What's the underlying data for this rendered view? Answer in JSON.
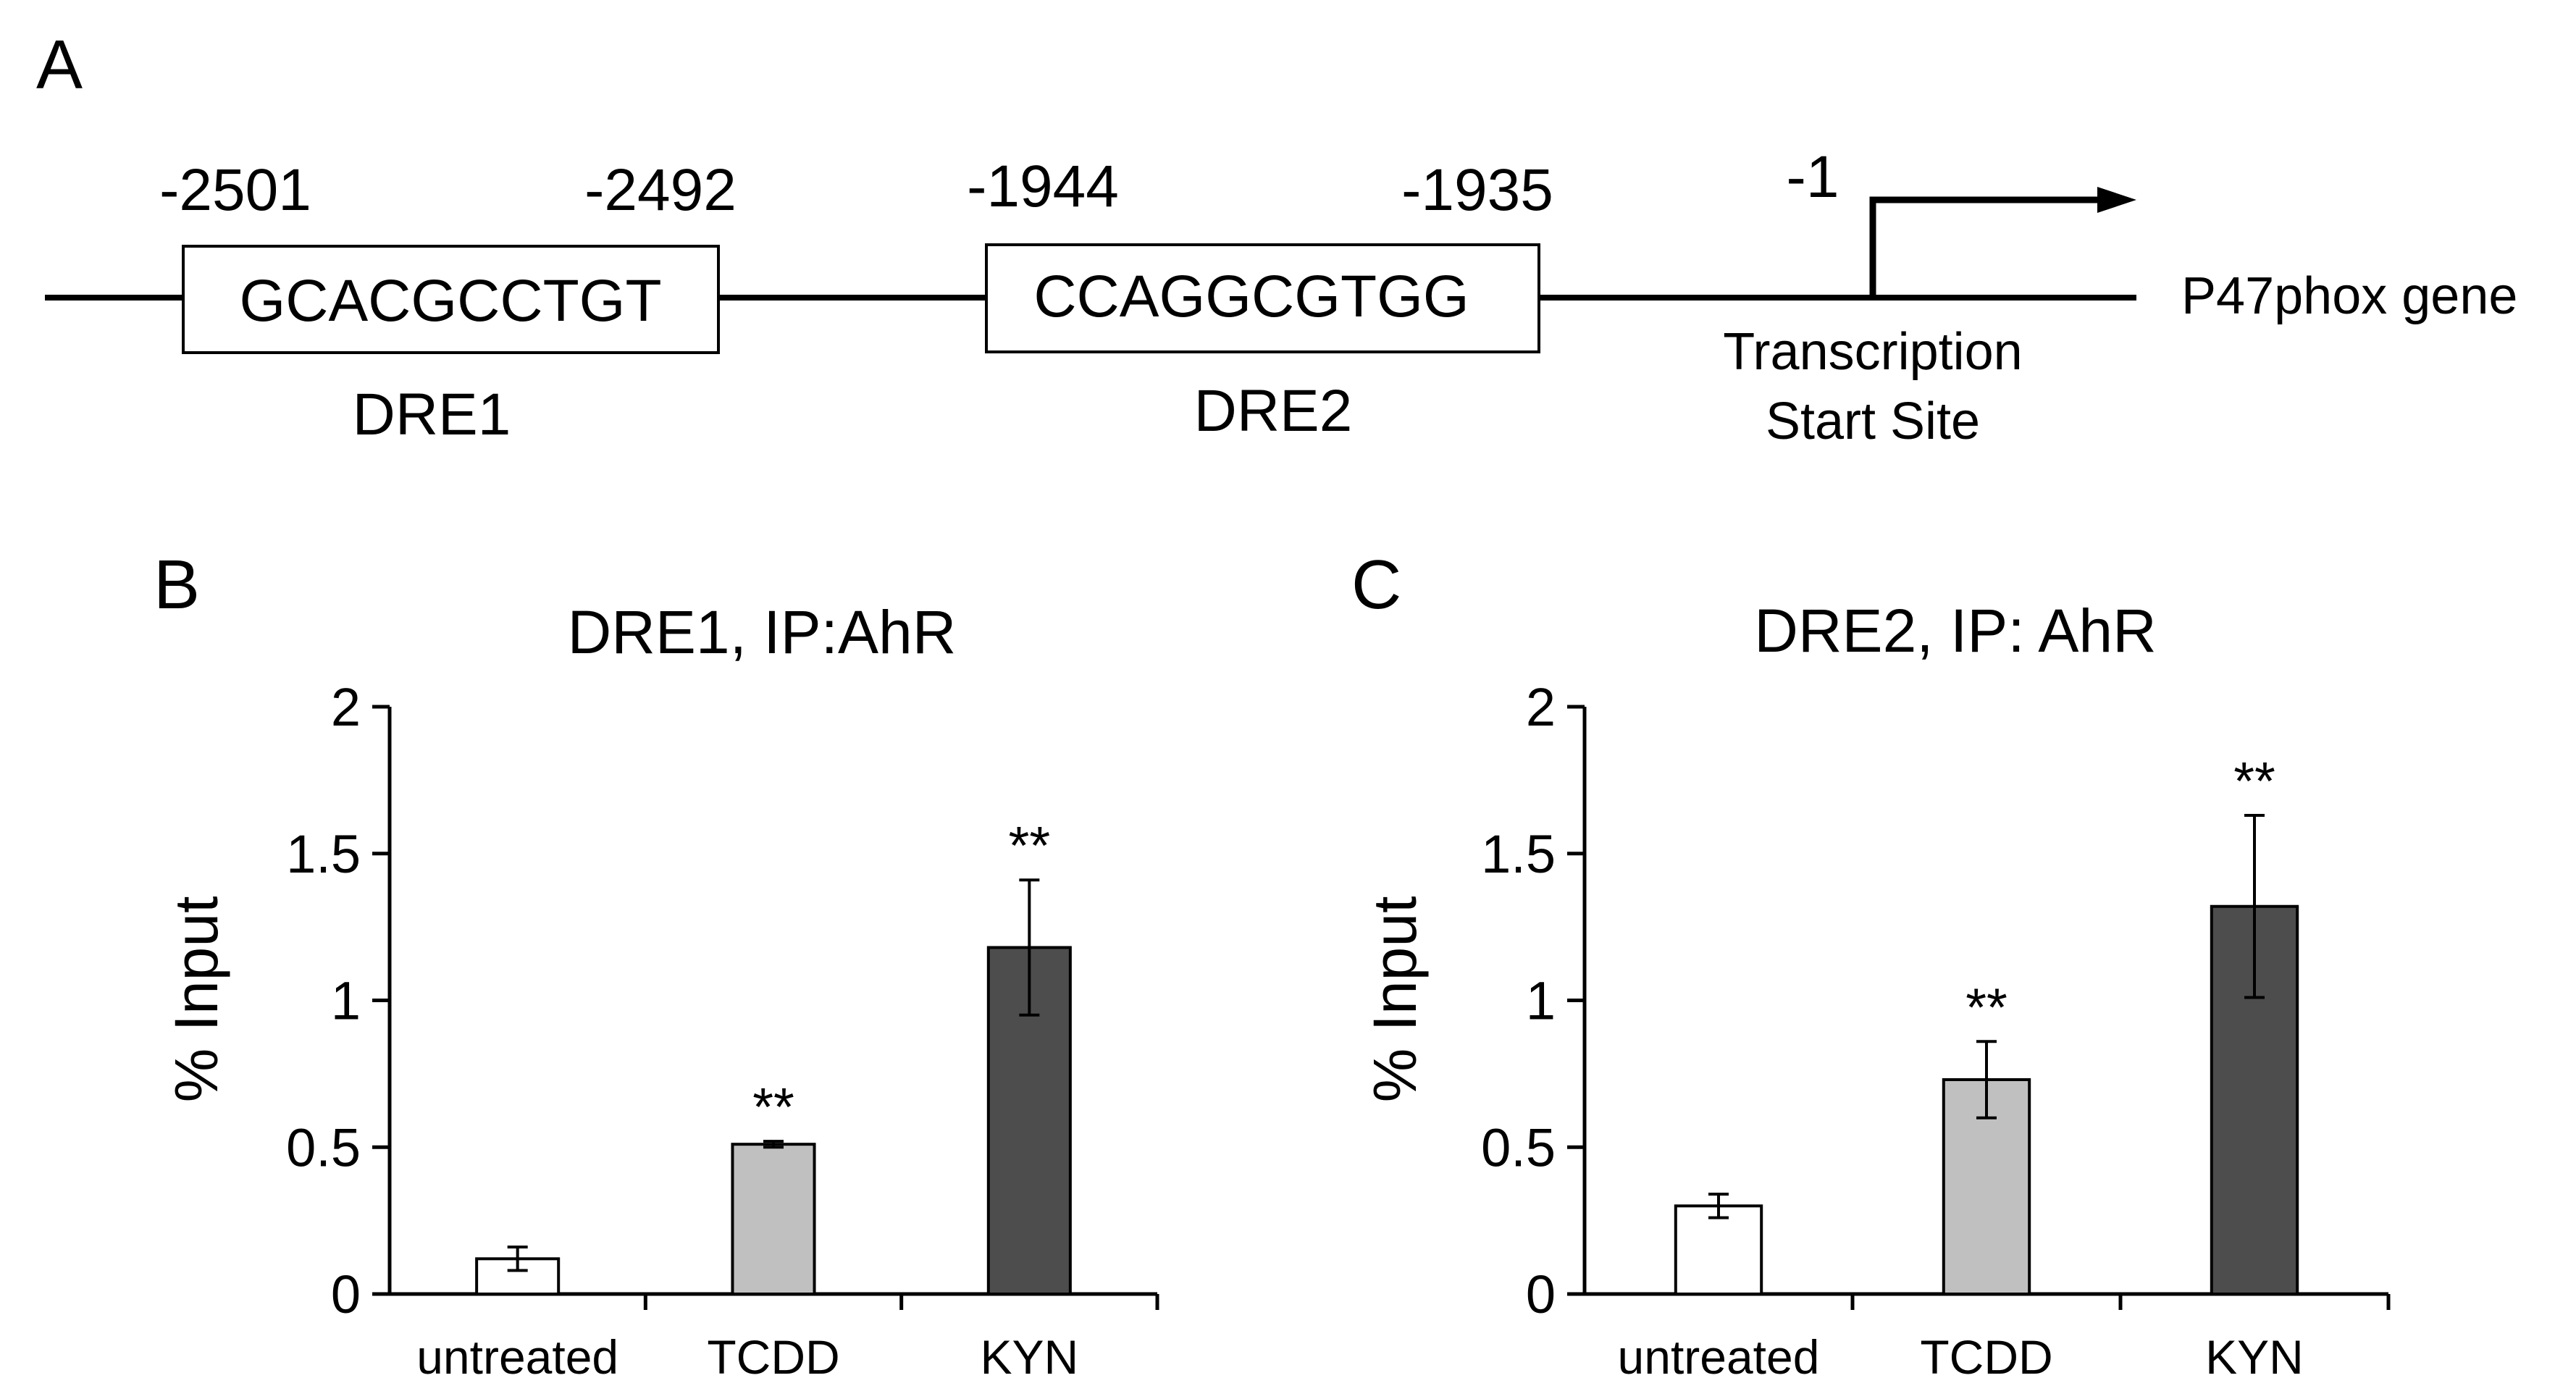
{
  "panel_a": {
    "label": "A",
    "gene_label": "P47phox gene",
    "tss_label_line1": "Transcription",
    "tss_label_line2": "Start Site",
    "tss_position": "-1",
    "dre1": {
      "name": "DRE1",
      "sequence": "GCACGCCTGT",
      "start": "-2501",
      "end": "-2492"
    },
    "dre2": {
      "name": "DRE2",
      "sequence": "CCAGGCGTGG",
      "start": "-1944",
      "end": "-1935"
    }
  },
  "chart_data": [
    {
      "panel_label": "B",
      "type": "bar",
      "title": "DRE1, IP:AhR",
      "xlabel": "",
      "ylabel": "% Input",
      "ylim": [
        0,
        2
      ],
      "yticks": [
        0,
        0.5,
        1,
        1.5,
        2
      ],
      "ytick_labels": [
        "0",
        "0.5",
        "1",
        "1.5",
        "2"
      ],
      "categories": [
        "untreated",
        "TCDD",
        "KYN"
      ],
      "values": [
        0.12,
        0.51,
        1.18
      ],
      "errors": [
        0.04,
        0.01,
        0.23
      ],
      "significance": [
        "",
        "**",
        "**"
      ],
      "colors": [
        "#ffffff",
        "#c0c0c0",
        "#4d4d4d"
      ]
    },
    {
      "panel_label": "C",
      "type": "bar",
      "title": "DRE2, IP: AhR",
      "xlabel": "",
      "ylabel": "% Input",
      "ylim": [
        0,
        2
      ],
      "yticks": [
        0,
        0.5,
        1,
        1.5,
        2
      ],
      "ytick_labels": [
        "0",
        "0.5",
        "1",
        "1.5",
        "2"
      ],
      "categories": [
        "untreated",
        "TCDD",
        "KYN"
      ],
      "values": [
        0.3,
        0.73,
        1.32
      ],
      "errors": [
        0.04,
        0.13,
        0.31
      ],
      "significance": [
        "",
        "**",
        "**"
      ],
      "colors": [
        "#ffffff",
        "#c0c0c0",
        "#4d4d4d"
      ]
    }
  ]
}
